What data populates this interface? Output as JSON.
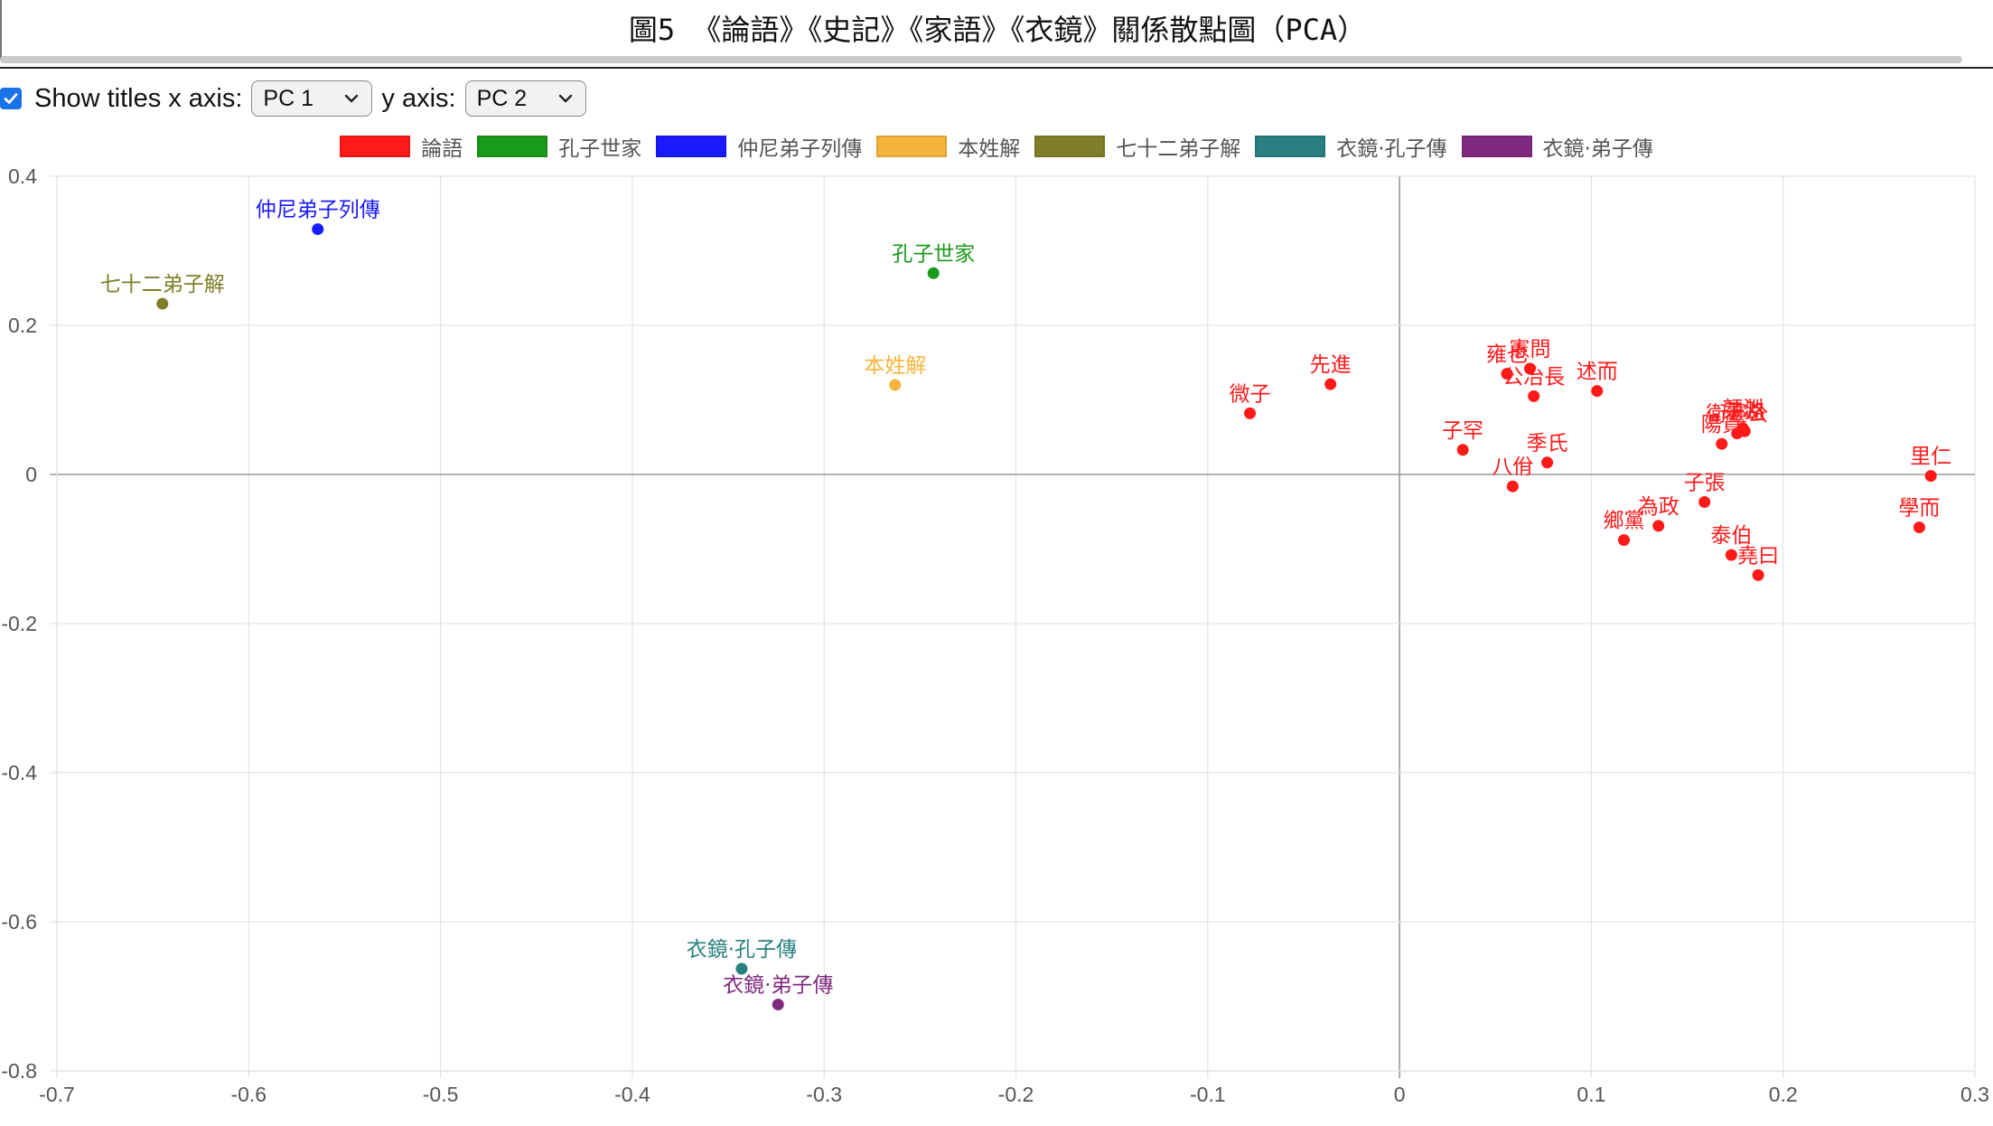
{
  "title": "圖5 《論語》《史記》《家語》《衣鏡》關係散點圖（PCA）",
  "controls": {
    "show_titles_label": "Show titles",
    "show_titles_checked": true,
    "x_axis_label": "x axis:",
    "x_axis_value": "PC 1",
    "y_axis_label": "y axis:",
    "y_axis_value": "PC 2"
  },
  "colors": {
    "論語": "#ff1a1a",
    "孔子世家": "#1a9a1a",
    "仲尼弟子列傳": "#1a1aff",
    "本姓解": "#f7b43c",
    "七十二弟子解": "#7f7f2a",
    "衣鏡·孔子傳": "#2a8080",
    "衣鏡·弟子傳": "#7f2a80",
    "grid": "#e3e3e3",
    "zero_line": "#999999"
  },
  "chart_data": {
    "type": "scatter",
    "title": "圖5 《論語》《史記》《家語》《衣鏡》關係散點圖（PCA）",
    "xlabel": "",
    "ylabel": "",
    "xlim": [
      -0.7,
      0.3
    ],
    "ylim": [
      -0.8,
      0.4
    ],
    "x_ticks": [
      "-0.7",
      "-0.6",
      "-0.5",
      "-0.4",
      "-0.3",
      "-0.2",
      "-0.1",
      "0",
      "0.1",
      "0.2",
      "0.3"
    ],
    "y_ticks": [
      "0.4",
      "0.2",
      "0",
      "-0.2",
      "-0.4",
      "-0.6",
      "-0.8"
    ],
    "grid": true,
    "legend_position": "top-center",
    "legend": [
      "論語",
      "孔子世家",
      "仲尼弟子列傳",
      "本姓解",
      "七十二弟子解",
      "衣鏡·孔子傳",
      "衣鏡·弟子傳"
    ],
    "series": [
      {
        "name": "論語",
        "points": [
          {
            "label": "微子",
            "x": -0.078,
            "y": 0.082
          },
          {
            "label": "先進",
            "x": -0.036,
            "y": 0.121
          },
          {
            "label": "子罕",
            "x": 0.033,
            "y": 0.033
          },
          {
            "label": "雍也",
            "x": 0.056,
            "y": 0.135
          },
          {
            "label": "憲問",
            "x": 0.068,
            "y": 0.142
          },
          {
            "label": "公冶長",
            "x": 0.07,
            "y": 0.105
          },
          {
            "label": "八佾",
            "x": 0.059,
            "y": -0.016
          },
          {
            "label": "季氏",
            "x": 0.077,
            "y": 0.016
          },
          {
            "label": "述而",
            "x": 0.103,
            "y": 0.112
          },
          {
            "label": "鄉黨",
            "x": 0.117,
            "y": -0.088
          },
          {
            "label": "為政",
            "x": 0.135,
            "y": -0.069
          },
          {
            "label": "子張",
            "x": 0.159,
            "y": -0.037
          },
          {
            "label": "泰伯",
            "x": 0.173,
            "y": -0.108
          },
          {
            "label": "堯曰",
            "x": 0.187,
            "y": -0.135
          },
          {
            "label": "顏淵",
            "x": 0.179,
            "y": 0.062
          },
          {
            "label": "衛靈公",
            "x": 0.176,
            "y": 0.055
          },
          {
            "label": "子路",
            "x": 0.18,
            "y": 0.058
          },
          {
            "label": "陽貨",
            "x": 0.168,
            "y": 0.041
          },
          {
            "label": "里仁",
            "x": 0.277,
            "y": -0.002
          },
          {
            "label": "學而",
            "x": 0.271,
            "y": -0.071
          }
        ]
      },
      {
        "name": "孔子世家",
        "points": [
          {
            "label": "孔子世家",
            "x": -0.243,
            "y": 0.27
          }
        ]
      },
      {
        "name": "仲尼弟子列傳",
        "points": [
          {
            "label": "仲尼弟子列傳",
            "x": -0.564,
            "y": 0.329
          }
        ]
      },
      {
        "name": "本姓解",
        "points": [
          {
            "label": "本姓解",
            "x": -0.263,
            "y": 0.12
          }
        ]
      },
      {
        "name": "七十二弟子解",
        "points": [
          {
            "label": "七十二弟子解",
            "x": -0.645,
            "y": 0.229
          }
        ]
      },
      {
        "name": "衣鏡·孔子傳",
        "points": [
          {
            "label": "衣鏡·孔子傳",
            "x": -0.343,
            "y": -0.663
          }
        ]
      },
      {
        "name": "衣鏡·弟子傳",
        "points": [
          {
            "label": "衣鏡·弟子傳",
            "x": -0.324,
            "y": -0.711
          }
        ]
      }
    ]
  }
}
